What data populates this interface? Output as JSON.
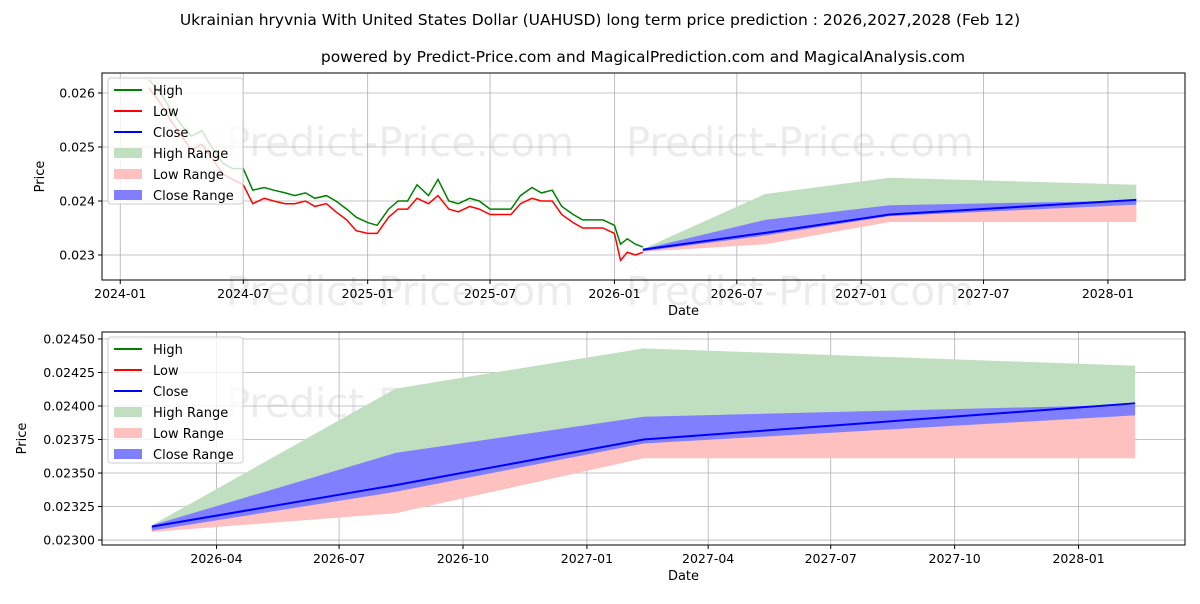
{
  "title": "Ukrainian hryvnia With United States Dollar (UAHUSD) long term price prediction : 2026,2027,2028 (Feb 12)",
  "subtitle": "powered by Predict-Price.com and MagicalPrediction.com and MagicalAnalysis.com",
  "watermark": "Predict-Price.com",
  "colors": {
    "high": "#008000",
    "low": "#ff0000",
    "close": "#0000ff",
    "high_range": "#c0dfc0",
    "low_range": "#ffc0c0",
    "close_range": "#8080ff"
  },
  "legend": [
    "High",
    "Low",
    "Close",
    "High Range",
    "Low Range",
    "Close Range"
  ],
  "chart_data": [
    {
      "type": "line",
      "panel": "overview",
      "xlabel": "Date",
      "ylabel": "Price",
      "xlim": [
        "2023-12-05",
        "2028-04-24"
      ],
      "ylim": [
        0.022537,
        0.02637
      ],
      "xticks": [
        "2024-01",
        "2024-07",
        "2025-01",
        "2025-07",
        "2026-01",
        "2026-07",
        "2027-01",
        "2027-07",
        "2028-01"
      ],
      "yticks": [
        "0.023",
        "0.024",
        "0.025",
        "0.026"
      ],
      "grid": true,
      "legend_position": "top-left",
      "history": {
        "dates": [
          "2024-02-12",
          "2024-03-01",
          "2024-03-15",
          "2024-04-01",
          "2024-04-15",
          "2024-05-01",
          "2024-05-15",
          "2024-06-01",
          "2024-06-15",
          "2024-07-01",
          "2024-07-15",
          "2024-08-01",
          "2024-08-15",
          "2024-09-01",
          "2024-09-15",
          "2024-10-01",
          "2024-10-15",
          "2024-11-01",
          "2024-11-15",
          "2024-12-01",
          "2024-12-15",
          "2025-01-01",
          "2025-01-15",
          "2025-02-01",
          "2025-02-15",
          "2025-03-01",
          "2025-03-15",
          "2025-04-01",
          "2025-04-15",
          "2025-05-01",
          "2025-05-15",
          "2025-06-01",
          "2025-06-15",
          "2025-07-01",
          "2025-07-15",
          "2025-08-01",
          "2025-08-15",
          "2025-09-01",
          "2025-09-15",
          "2025-10-01",
          "2025-10-15",
          "2025-11-01",
          "2025-11-15",
          "2025-12-01",
          "2025-12-15",
          "2026-01-01",
          "2026-01-10",
          "2026-01-20",
          "2026-02-01",
          "2026-02-12"
        ],
        "high": [
          0.02625,
          0.026,
          0.0257,
          0.0254,
          0.0252,
          0.0253,
          0.025,
          0.0247,
          0.0246,
          0.0246,
          0.0242,
          0.02425,
          0.0242,
          0.02415,
          0.0241,
          0.02415,
          0.02405,
          0.0241,
          0.024,
          0.02385,
          0.0237,
          0.0236,
          0.02355,
          0.02385,
          0.024,
          0.024,
          0.0243,
          0.0241,
          0.0244,
          0.024,
          0.02395,
          0.02405,
          0.024,
          0.02385,
          0.02385,
          0.02385,
          0.0241,
          0.02425,
          0.02415,
          0.0242,
          0.0239,
          0.02375,
          0.02365,
          0.02365,
          0.02365,
          0.02355,
          0.0232,
          0.0233,
          0.0232,
          0.02315
        ],
        "low": [
          0.0261,
          0.0258,
          0.0255,
          0.0252,
          0.02495,
          0.02505,
          0.0248,
          0.0245,
          0.0244,
          0.0243,
          0.02395,
          0.02405,
          0.024,
          0.02395,
          0.02395,
          0.024,
          0.0239,
          0.02395,
          0.0238,
          0.02365,
          0.02345,
          0.0234,
          0.0234,
          0.0237,
          0.02385,
          0.02385,
          0.02405,
          0.02395,
          0.0241,
          0.02385,
          0.0238,
          0.0239,
          0.02385,
          0.02375,
          0.02375,
          0.02375,
          0.02395,
          0.02405,
          0.024,
          0.024,
          0.02375,
          0.0236,
          0.0235,
          0.0235,
          0.0235,
          0.0234,
          0.0229,
          0.02305,
          0.023,
          0.02305
        ]
      },
      "forecast": {
        "dates": [
          "2026-02-12",
          "2026-08-12",
          "2027-02-12",
          "2028-02-12"
        ],
        "close": [
          0.0231,
          0.02341,
          0.02375,
          0.02402
        ],
        "high_range": {
          "upper": [
            0.02311,
            0.02413,
            0.02443,
            0.0243
          ],
          "lower": [
            0.02309,
            0.02341,
            0.02375,
            0.02402
          ]
        },
        "low_range": {
          "upper": [
            0.0231,
            0.02341,
            0.02375,
            0.02393
          ],
          "lower": [
            0.02306,
            0.0232,
            0.02361,
            0.02361
          ]
        },
        "close_range": {
          "upper": [
            0.02311,
            0.02365,
            0.02392,
            0.02401
          ],
          "lower": [
            0.02307,
            0.02336,
            0.02372,
            0.02393
          ]
        }
      }
    },
    {
      "type": "line",
      "panel": "forecast-detail",
      "xlabel": "Date",
      "ylabel": "Price",
      "xlim": [
        "2026-01-06",
        "2028-03-20"
      ],
      "ylim": [
        0.022963,
        0.024552
      ],
      "xticks": [
        "2026-04",
        "2026-07",
        "2026-10",
        "2027-01",
        "2027-04",
        "2027-07",
        "2027-10",
        "2028-01"
      ],
      "yticks": [
        "0.02300",
        "0.02325",
        "0.02350",
        "0.02375",
        "0.02400",
        "0.02425",
        "0.02450"
      ],
      "grid": true,
      "legend_position": "top-left"
    }
  ]
}
